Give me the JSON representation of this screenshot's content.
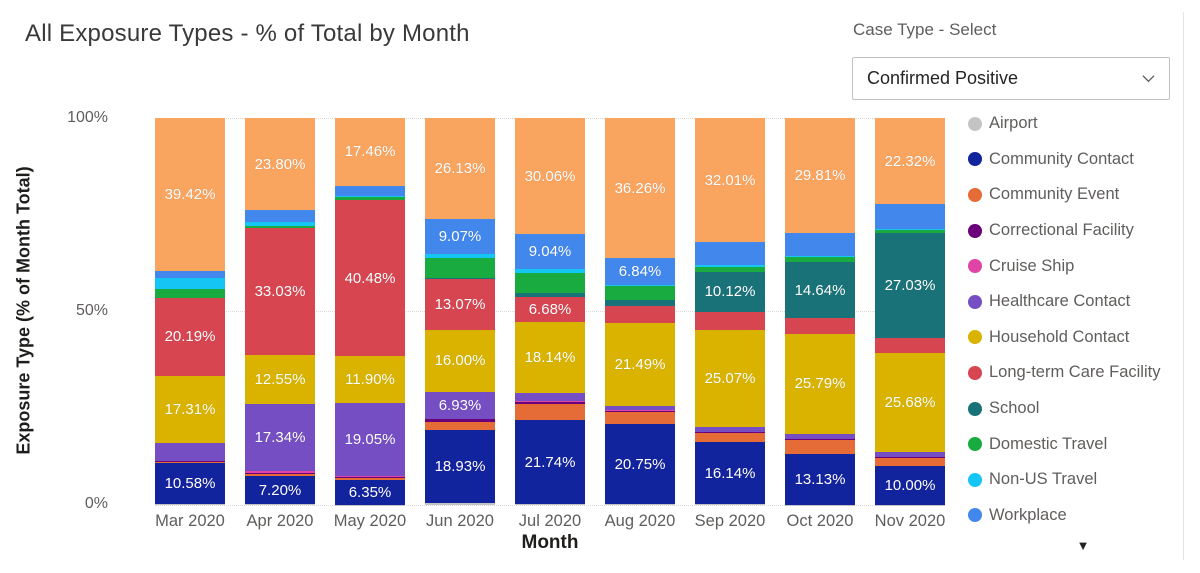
{
  "title": "All Exposure Types - % of Total by Month",
  "slicer": {
    "label": "Case Type - Select",
    "value": "Confirmed Positive"
  },
  "legend_scroll_indicator": "▼",
  "chart_data": {
    "type": "bar",
    "subtype": "100% stacked column",
    "title": "All Exposure Types - % of Total by Month",
    "xlabel": "Month",
    "ylabel": "Exposure Type (% of Month Total)",
    "ylim": [
      0,
      100
    ],
    "yticks": [
      "0%",
      "50%",
      "100%"
    ],
    "grid": "dotted horizontal lines at 0%, 50%, 100%",
    "legend_position": "right",
    "categories": [
      "Mar 2020",
      "Apr 2020",
      "May 2020",
      "Jun 2020",
      "Jul 2020",
      "Aug 2020",
      "Sep 2020",
      "Oct 2020",
      "Nov 2020"
    ],
    "series": [
      {
        "name": "Airport",
        "key": "airport",
        "color": "#C4C4C4",
        "in_legend": true,
        "values": [
          0.2,
          0.2,
          0.1,
          0.5,
          0.2,
          0.2,
          0.2,
          0.13,
          0.1
        ],
        "labels": [
          null,
          null,
          null,
          null,
          null,
          null,
          null,
          null,
          null
        ]
      },
      {
        "name": "Community Contact",
        "key": "community-contact",
        "color": "#12239E",
        "in_legend": true,
        "values": [
          10.58,
          7.2,
          6.35,
          18.93,
          21.74,
          20.75,
          16.14,
          13.13,
          10.0
        ],
        "labels": [
          "10.58%",
          "7.20%",
          "6.35%",
          "18.93%",
          "21.74%",
          "20.75%",
          "16.14%",
          "13.13%",
          "10.00%"
        ]
      },
      {
        "name": "Community Event",
        "key": "community-event",
        "color": "#E66C37",
        "in_legend": true,
        "values": [
          0.4,
          0.5,
          0.5,
          2.0,
          4.2,
          3.0,
          2.2,
          3.5,
          2.0
        ],
        "labels": [
          null,
          null,
          null,
          null,
          null,
          null,
          null,
          null,
          null
        ]
      },
      {
        "name": "Correctional Facility",
        "key": "correctional-facility",
        "color": "#6B007B",
        "in_legend": true,
        "values": [
          0.1,
          0.3,
          0.2,
          0.7,
          0.5,
          0.3,
          0.3,
          0.2,
          0.2
        ],
        "labels": [
          null,
          null,
          null,
          null,
          null,
          null,
          null,
          null,
          null
        ]
      },
      {
        "name": "Cruise Ship",
        "key": "cruise-ship",
        "color": "#E044A7",
        "in_legend": true,
        "values": [
          0.2,
          0.6,
          0.3,
          0.17,
          0.2,
          0.2,
          0.1,
          0.1,
          0.1
        ],
        "labels": [
          null,
          null,
          null,
          null,
          null,
          null,
          null,
          null,
          null
        ]
      },
      {
        "name": "Healthcare Contact",
        "key": "healthcare-contact",
        "color": "#744EC2",
        "in_legend": true,
        "values": [
          4.6,
          17.34,
          19.05,
          6.93,
          2.2,
          1.2,
          1.2,
          1.4,
          1.2
        ],
        "labels": [
          null,
          "17.34%",
          "19.05%",
          "6.93%",
          null,
          null,
          null,
          null,
          null
        ]
      },
      {
        "name": "Household Contact",
        "key": "household-contact",
        "color": "#D9B300",
        "in_legend": true,
        "values": [
          17.31,
          12.55,
          11.9,
          16.0,
          18.14,
          21.49,
          25.07,
          25.79,
          25.68
        ],
        "labels": [
          "17.31%",
          "12.55%",
          "11.90%",
          "16.00%",
          "18.14%",
          "21.49%",
          "25.07%",
          "25.79%",
          "25.68%"
        ]
      },
      {
        "name": "Long-term Care Facility",
        "key": "long-term-care-facility",
        "color": "#D64550",
        "in_legend": true,
        "values": [
          20.19,
          33.03,
          40.48,
          13.07,
          6.68,
          4.2,
          4.8,
          4.0,
          3.9
        ],
        "labels": [
          "20.19%",
          "33.03%",
          "40.48%",
          "13.07%",
          "6.68%",
          null,
          null,
          null,
          null
        ]
      },
      {
        "name": "School",
        "key": "school",
        "color": "#197278",
        "in_legend": true,
        "values": [
          0,
          0,
          0,
          0.5,
          0.9,
          1.6,
          10.12,
          14.64,
          27.03
        ],
        "labels": [
          null,
          null,
          null,
          null,
          null,
          null,
          "10.12%",
          "14.64%",
          "27.03%"
        ]
      },
      {
        "name": "Domestic Travel",
        "key": "domestic-travel",
        "color": "#1AAB40",
        "in_legend": true,
        "values": [
          2.3,
          0.4,
          0.6,
          5.0,
          5.34,
          3.56,
          1.5,
          1.3,
          0.8
        ],
        "labels": [
          null,
          null,
          null,
          null,
          null,
          null,
          null,
          null,
          null
        ]
      },
      {
        "name": "Non-US Travel",
        "key": "non-us-travel",
        "color": "#15C6F4",
        "in_legend": true,
        "values": [
          2.7,
          1.0,
          0.3,
          1.0,
          0.8,
          0.4,
          0.3,
          0.3,
          0.4
        ],
        "labels": [
          null,
          null,
          null,
          null,
          null,
          null,
          null,
          null,
          null
        ]
      },
      {
        "name": "Workplace",
        "key": "workplace",
        "color": "#4287EC",
        "in_legend": true,
        "values": [
          2.0,
          3.08,
          2.76,
          9.07,
          9.04,
          6.84,
          6.06,
          5.7,
          6.27
        ],
        "labels": [
          null,
          null,
          null,
          "9.07%",
          "9.04%",
          "6.84%",
          null,
          null,
          null
        ]
      },
      {
        "name": "",
        "key": "unknown-top",
        "color": "#F9A45F",
        "in_legend": false,
        "values": [
          39.42,
          23.8,
          17.46,
          26.13,
          30.06,
          36.26,
          32.01,
          29.81,
          22.32
        ],
        "labels": [
          "39.42%",
          "23.80%",
          "17.46%",
          "26.13%",
          "30.06%",
          "36.26%",
          "32.01%",
          "29.81%",
          "22.32%"
        ]
      }
    ]
  }
}
